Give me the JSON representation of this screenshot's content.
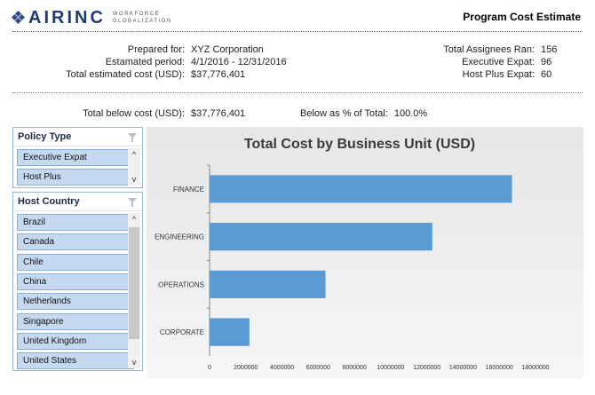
{
  "header": {
    "logo_name": "AIRINC",
    "logo_tag_line1": "WORKFORCE",
    "logo_tag_line2": "GLOBALIZATION",
    "title": "Program Cost Estimate"
  },
  "summary": {
    "prepared_for_label": "Prepared for:",
    "prepared_for": "XYZ Corporation",
    "period_label": "Estamated period:",
    "period": "4/1/2016 - 12/31/2016",
    "total_cost_label": "Total estimated cost (USD):",
    "total_cost": "$37,776,401",
    "assignees_label": "Total Assignees Ran:",
    "assignees": "156",
    "exec_label": "Executive Expat:",
    "exec": "96",
    "hostplus_label": "Host Plus Expat:",
    "hostplus": "60"
  },
  "below": {
    "total_label": "Total below cost (USD):",
    "total": "$37,776,401",
    "pct_label": "Below as % of Total:",
    "pct": "100.0%"
  },
  "slicers": {
    "policy": {
      "title": "Policy Type",
      "items": [
        "Executive Expat",
        "Host Plus"
      ]
    },
    "country": {
      "title": "Host Country",
      "items": [
        "Brazil",
        "Canada",
        "Chile",
        "China",
        "Netherlands",
        "Singapore",
        "United Kingdom",
        "United States"
      ]
    }
  },
  "icons": {
    "filter": "clear-filter-icon",
    "scroll_up": "scroll-up-arrow-icon",
    "scroll_down": "scroll-down-arrow-icon"
  },
  "colors": {
    "bar": "#5b9bd5",
    "slicer_item": "#c5d9f1",
    "logo": "#1f3b73"
  },
  "chart_data": {
    "type": "bar",
    "orientation": "horizontal",
    "title": "Total Cost by Business Unit (USD)",
    "categories": [
      "FINANCE",
      "ENGINEERING",
      "OPERATIONS",
      "CORPORATE"
    ],
    "values": [
      16700000,
      12300000,
      6400000,
      2200000
    ],
    "xlim": [
      0,
      18000000
    ],
    "x_ticks": [
      0,
      2000000,
      4000000,
      6000000,
      8000000,
      10000000,
      12000000,
      14000000,
      16000000,
      18000000
    ],
    "grid": false,
    "legend": "none"
  }
}
